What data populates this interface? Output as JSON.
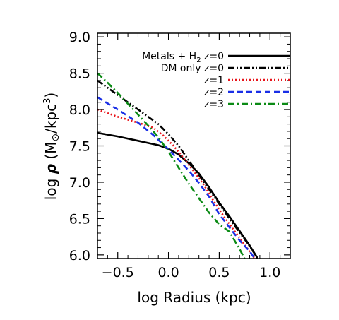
{
  "chart_data": {
    "type": "line",
    "xlabel": "log Radius (kpc)",
    "ylabel_parts": {
      "pre": "log ",
      "rho": "ρ",
      "open": " (M",
      "sun": "⊙",
      "mid": "/kpc",
      "exp": "3",
      "close": ")"
    },
    "xlim": [
      -0.7,
      1.2
    ],
    "ylim": [
      5.95,
      9.05
    ],
    "xticks": [
      -0.5,
      0.0,
      0.5,
      1.0
    ],
    "xtick_labels": [
      "−0.5",
      "0.0",
      "0.5",
      "1.0"
    ],
    "yticks": [
      6.0,
      6.5,
      7.0,
      7.5,
      8.0,
      8.5,
      9.0
    ],
    "ytick_labels": [
      "6.0",
      "6.5",
      "7.0",
      "7.5",
      "8.0",
      "8.5",
      "9.0"
    ],
    "grid": false,
    "legend_position": "top-right",
    "series": [
      {
        "legend_parts": {
          "pre": "Metals + H",
          "sub": "2",
          "post": " z=0"
        },
        "color": "#000000",
        "style": "solid",
        "x": [
          -0.7,
          -0.5,
          -0.3,
          -0.1,
          0.0,
          0.1,
          0.2,
          0.3,
          0.4,
          0.5,
          0.6,
          0.7,
          0.8,
          0.88
        ],
        "y": [
          7.68,
          7.63,
          7.57,
          7.51,
          7.46,
          7.38,
          7.26,
          7.12,
          6.93,
          6.72,
          6.53,
          6.33,
          6.13,
          5.95
        ]
      },
      {
        "legend_parts": {
          "pre": "DM only",
          "sub": "",
          "post": " z=0"
        },
        "color": "#000000",
        "style": "dashdotdot",
        "x": [
          -0.7,
          -0.6,
          -0.5,
          -0.4,
          -0.3,
          -0.2,
          -0.1,
          0.0,
          0.1,
          0.2,
          0.3,
          0.4,
          0.5,
          0.6,
          0.7,
          0.8,
          0.88
        ],
        "y": [
          8.4,
          8.3,
          8.2,
          8.1,
          8.0,
          7.9,
          7.8,
          7.66,
          7.5,
          7.3,
          7.1,
          6.9,
          6.7,
          6.5,
          6.31,
          6.12,
          5.95
        ]
      },
      {
        "legend_parts": {
          "pre": "",
          "sub": "",
          "post": "z=1"
        },
        "color": "#e8141a",
        "style": "dotted",
        "x": [
          -0.7,
          -0.5,
          -0.3,
          -0.15,
          -0.05,
          0.05,
          0.15,
          0.25,
          0.35,
          0.45,
          0.55,
          0.65,
          0.75,
          0.85
        ],
        "y": [
          8.0,
          7.9,
          7.82,
          7.75,
          7.64,
          7.5,
          7.33,
          7.15,
          6.96,
          6.73,
          6.52,
          6.33,
          6.14,
          5.95
        ]
      },
      {
        "legend_parts": {
          "pre": "",
          "sub": "",
          "post": "z=2"
        },
        "color": "#1a2fe6",
        "style": "dashed",
        "x": [
          -0.7,
          -0.5,
          -0.3,
          -0.15,
          0.0,
          0.1,
          0.2,
          0.3,
          0.4,
          0.5,
          0.6,
          0.7,
          0.8,
          0.85
        ],
        "y": [
          8.17,
          8.0,
          7.82,
          7.65,
          7.45,
          7.31,
          7.16,
          6.99,
          6.8,
          6.56,
          6.38,
          6.2,
          6.05,
          5.95
        ]
      },
      {
        "legend_parts": {
          "pre": "",
          "sub": "",
          "post": "z=3"
        },
        "color": "#0a8a14",
        "style": "dashdot",
        "x": [
          -0.7,
          -0.6,
          -0.5,
          -0.4,
          -0.3,
          -0.2,
          -0.1,
          0.0,
          0.1,
          0.2,
          0.3,
          0.4,
          0.5,
          0.6,
          0.7,
          0.75
        ],
        "y": [
          8.5,
          8.37,
          8.23,
          8.08,
          7.93,
          7.78,
          7.62,
          7.42,
          7.2,
          6.98,
          6.78,
          6.58,
          6.42,
          6.32,
          6.08,
          5.95
        ]
      }
    ]
  }
}
